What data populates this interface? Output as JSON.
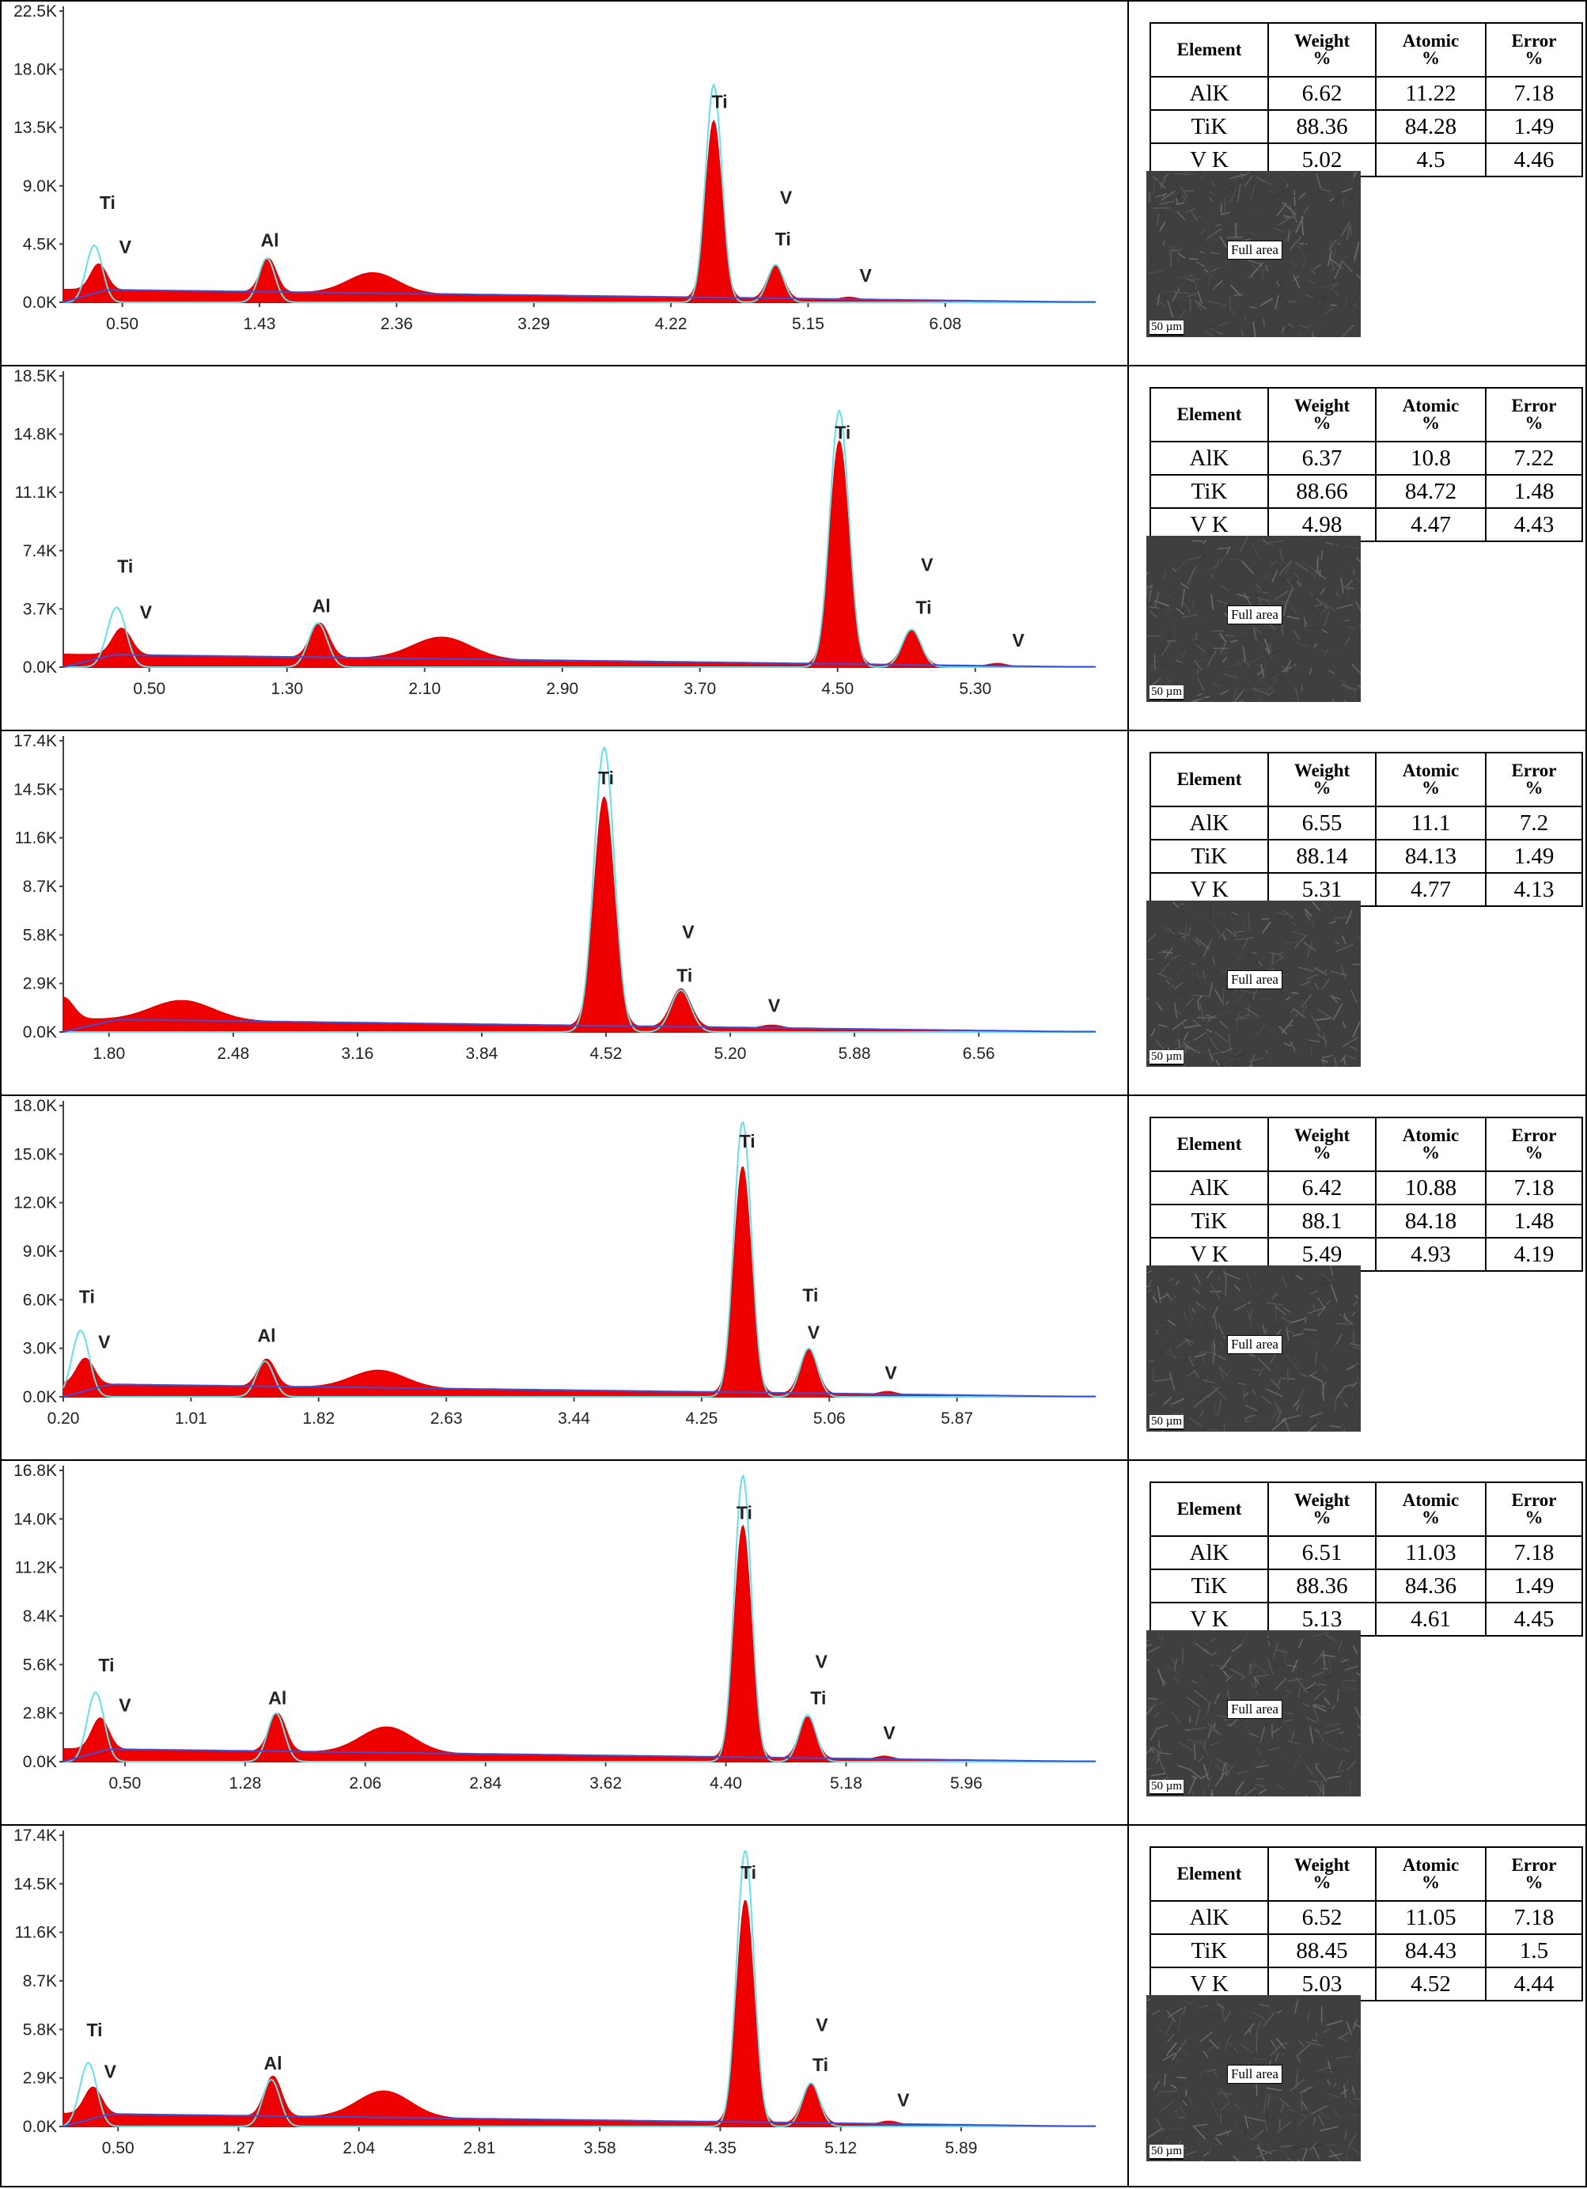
{
  "table_headers": [
    [
      "Element"
    ],
    [
      "Weight",
      "%"
    ],
    [
      "Atomic",
      "%"
    ],
    [
      "Error",
      "%"
    ]
  ],
  "image_label": "Full area",
  "scale_label": "50 µm",
  "chart_data": [
    {
      "type": "area",
      "x_ticks": [
        "0.50",
        "1.43",
        "2.36",
        "3.29",
        "4.22",
        "5.15",
        "6.08"
      ],
      "xlim": [
        0.1,
        7.1
      ],
      "y_ticks": [
        "0.0K",
        "4.5K",
        "9.0K",
        "13.5K",
        "18.0K",
        "22.5K"
      ],
      "ylim": [
        0,
        22500
      ],
      "measured_peaks": [
        {
          "x": 0.34,
          "y": 2000
        },
        {
          "x": 1.49,
          "y": 2600
        },
        {
          "x": 2.2,
          "y": 1600
        },
        {
          "x": 4.51,
          "y": 13700
        },
        {
          "x": 4.93,
          "y": 2600
        },
        {
          "x": 5.43,
          "y": 200
        }
      ],
      "fit_peaks": [
        {
          "x": 0.31,
          "y": 4400
        },
        {
          "x": 1.48,
          "y": 3400
        },
        {
          "x": 4.51,
          "y": 16800
        },
        {
          "x": 4.93,
          "y": 2900
        }
      ],
      "peak_labels": [
        {
          "text": "Ti",
          "x": 0.4,
          "y": 7200
        },
        {
          "text": "V",
          "x": 0.52,
          "y": 3800
        },
        {
          "text": "Al",
          "x": 1.5,
          "y": 4300
        },
        {
          "text": "Ti",
          "x": 4.55,
          "y": 15000
        },
        {
          "text": "V",
          "x": 5.0,
          "y": 7600
        },
        {
          "text": "Ti",
          "x": 4.98,
          "y": 4400
        },
        {
          "text": "V",
          "x": 5.54,
          "y": 1600
        }
      ],
      "table": [
        [
          "AlK",
          "6.62",
          "11.22",
          "7.18"
        ],
        [
          "TiK",
          "88.36",
          "84.28",
          "1.49"
        ],
        [
          "V K",
          "5.02",
          "4.5",
          "4.46"
        ]
      ]
    },
    {
      "type": "area",
      "x_ticks": [
        "0.50",
        "1.30",
        "2.10",
        "2.90",
        "3.70",
        "4.50",
        "5.30"
      ],
      "xlim": [
        0.0,
        6.0
      ],
      "y_ticks": [
        "0.0K",
        "3.7K",
        "7.4K",
        "11.1K",
        "14.8K",
        "18.5K"
      ],
      "ylim": [
        0,
        18500
      ],
      "measured_peaks": [
        {
          "x": 0.34,
          "y": 1700
        },
        {
          "x": 1.49,
          "y": 2200
        },
        {
          "x": 2.2,
          "y": 1400
        },
        {
          "x": 4.51,
          "y": 14200
        },
        {
          "x": 4.93,
          "y": 2200
        },
        {
          "x": 5.43,
          "y": 200
        }
      ],
      "fit_peaks": [
        {
          "x": 0.31,
          "y": 3800
        },
        {
          "x": 1.48,
          "y": 2800
        },
        {
          "x": 4.51,
          "y": 16300
        },
        {
          "x": 4.93,
          "y": 2400
        }
      ],
      "peak_labels": [
        {
          "text": "Ti",
          "x": 0.36,
          "y": 6000
        },
        {
          "text": "V",
          "x": 0.48,
          "y": 3100
        },
        {
          "text": "Al",
          "x": 1.5,
          "y": 3500
        },
        {
          "text": "Ti",
          "x": 4.53,
          "y": 14500
        },
        {
          "text": "V",
          "x": 5.02,
          "y": 6100
        },
        {
          "text": "Ti",
          "x": 5.0,
          "y": 3400
        },
        {
          "text": "V",
          "x": 5.55,
          "y": 1300
        }
      ],
      "table": [
        [
          "AlK",
          "6.37",
          "10.8",
          "7.22"
        ],
        [
          "TiK",
          "88.66",
          "84.72",
          "1.48"
        ],
        [
          "V K",
          "4.98",
          "4.47",
          "4.43"
        ]
      ]
    },
    {
      "type": "area",
      "x_ticks": [
        "1.80",
        "2.48",
        "3.16",
        "3.84",
        "4.52",
        "5.20",
        "5.88",
        "6.56"
      ],
      "xlim": [
        1.55,
        7.2
      ],
      "y_ticks": [
        "0.0K",
        "2.9K",
        "5.8K",
        "8.7K",
        "11.6K",
        "14.5K",
        "17.4K"
      ],
      "ylim": [
        0,
        17400
      ],
      "measured_peaks": [
        {
          "x": 1.55,
          "y": 1300
        },
        {
          "x": 2.2,
          "y": 1200
        },
        {
          "x": 4.51,
          "y": 13700
        },
        {
          "x": 4.93,
          "y": 2300
        },
        {
          "x": 5.43,
          "y": 200
        }
      ],
      "fit_peaks": [
        {
          "x": 4.51,
          "y": 17000
        },
        {
          "x": 4.93,
          "y": 2500
        }
      ],
      "peak_labels": [
        {
          "text": "Ti",
          "x": 4.52,
          "y": 14800
        },
        {
          "text": "V",
          "x": 4.97,
          "y": 5600
        },
        {
          "text": "Ti",
          "x": 4.95,
          "y": 3000
        },
        {
          "text": "V",
          "x": 5.44,
          "y": 1200
        }
      ],
      "table": [
        [
          "AlK",
          "6.55",
          "11.1",
          "7.2"
        ],
        [
          "TiK",
          "88.14",
          "84.13",
          "1.49"
        ],
        [
          "V K",
          "5.31",
          "4.77",
          "4.13"
        ]
      ]
    },
    {
      "type": "area",
      "x_ticks": [
        "0.20",
        "1.01",
        "1.82",
        "2.63",
        "3.44",
        "4.25",
        "5.06",
        "5.87"
      ],
      "xlim": [
        0.2,
        6.75
      ],
      "y_ticks": [
        "0.0K",
        "3.0K",
        "6.0K",
        "9.0K",
        "12.0K",
        "15.0K",
        "18.0K"
      ],
      "ylim": [
        0,
        18000
      ],
      "measured_peaks": [
        {
          "x": 0.34,
          "y": 1600
        },
        {
          "x": 1.49,
          "y": 1700
        },
        {
          "x": 2.2,
          "y": 1100
        },
        {
          "x": 4.51,
          "y": 14000
        },
        {
          "x": 4.93,
          "y": 2800
        },
        {
          "x": 5.43,
          "y": 200
        }
      ],
      "fit_peaks": [
        {
          "x": 0.31,
          "y": 4100
        },
        {
          "x": 1.48,
          "y": 2200
        },
        {
          "x": 4.51,
          "y": 17000
        },
        {
          "x": 4.93,
          "y": 3000
        }
      ],
      "peak_labels": [
        {
          "text": "Ti",
          "x": 0.35,
          "y": 5800
        },
        {
          "text": "V",
          "x": 0.46,
          "y": 3000
        },
        {
          "text": "Al",
          "x": 1.49,
          "y": 3400
        },
        {
          "text": "Ti",
          "x": 4.54,
          "y": 15400
        },
        {
          "text": "Ti",
          "x": 4.94,
          "y": 5900
        },
        {
          "text": "V",
          "x": 4.96,
          "y": 3600
        },
        {
          "text": "V",
          "x": 5.45,
          "y": 1100
        }
      ],
      "table": [
        [
          "AlK",
          "6.42",
          "10.88",
          "7.18"
        ],
        [
          "TiK",
          "88.1",
          "84.18",
          "1.48"
        ],
        [
          "V K",
          "5.49",
          "4.93",
          "4.19"
        ]
      ]
    },
    {
      "type": "area",
      "x_ticks": [
        "0.50",
        "1.28",
        "2.06",
        "2.84",
        "3.62",
        "4.40",
        "5.18",
        "5.96"
      ],
      "xlim": [
        0.1,
        6.8
      ],
      "y_ticks": [
        "0.0K",
        "2.8K",
        "5.6K",
        "8.4K",
        "11.2K",
        "14.0K",
        "16.8K"
      ],
      "ylim": [
        0,
        16800
      ],
      "measured_peaks": [
        {
          "x": 0.34,
          "y": 1800
        },
        {
          "x": 1.49,
          "y": 2200
        },
        {
          "x": 2.2,
          "y": 1500
        },
        {
          "x": 4.51,
          "y": 13400
        },
        {
          "x": 4.93,
          "y": 2400
        },
        {
          "x": 5.43,
          "y": 200
        }
      ],
      "fit_peaks": [
        {
          "x": 0.31,
          "y": 4000
        },
        {
          "x": 1.48,
          "y": 2800
        },
        {
          "x": 4.51,
          "y": 16500
        },
        {
          "x": 4.93,
          "y": 2700
        }
      ],
      "peak_labels": [
        {
          "text": "Ti",
          "x": 0.38,
          "y": 5200
        },
        {
          "text": "V",
          "x": 0.5,
          "y": 2900
        },
        {
          "text": "Al",
          "x": 1.49,
          "y": 3300
        },
        {
          "text": "Ti",
          "x": 4.52,
          "y": 14000
        },
        {
          "text": "V",
          "x": 5.02,
          "y": 5400
        },
        {
          "text": "Ti",
          "x": 5.0,
          "y": 3300
        },
        {
          "text": "V",
          "x": 5.46,
          "y": 1300
        }
      ],
      "table": [
        [
          "AlK",
          "6.51",
          "11.03",
          "7.18"
        ],
        [
          "TiK",
          "88.36",
          "84.36",
          "1.49"
        ],
        [
          "V K",
          "5.13",
          "4.61",
          "4.45"
        ]
      ]
    },
    {
      "type": "area",
      "x_ticks": [
        "0.50",
        "1.27",
        "2.04",
        "2.81",
        "3.58",
        "4.35",
        "5.12",
        "5.89"
      ],
      "xlim": [
        0.15,
        6.75
      ],
      "y_ticks": [
        "0.0K",
        "2.9K",
        "5.8K",
        "8.7K",
        "11.6K",
        "14.5K",
        "17.4K"
      ],
      "ylim": [
        0,
        17400
      ],
      "measured_peaks": [
        {
          "x": 0.34,
          "y": 1600
        },
        {
          "x": 1.49,
          "y": 2400
        },
        {
          "x": 2.2,
          "y": 1600
        },
        {
          "x": 4.51,
          "y": 13300
        },
        {
          "x": 4.93,
          "y": 2400
        },
        {
          "x": 5.43,
          "y": 200
        }
      ],
      "fit_peaks": [
        {
          "x": 0.31,
          "y": 3800
        },
        {
          "x": 1.48,
          "y": 2800
        },
        {
          "x": 4.51,
          "y": 16500
        },
        {
          "x": 4.93,
          "y": 2600
        }
      ],
      "peak_labels": [
        {
          "text": "Ti",
          "x": 0.35,
          "y": 5400
        },
        {
          "text": "V",
          "x": 0.45,
          "y": 2900
        },
        {
          "text": "Al",
          "x": 1.49,
          "y": 3400
        },
        {
          "text": "Ti",
          "x": 4.53,
          "y": 14800
        },
        {
          "text": "V",
          "x": 5.0,
          "y": 5700
        },
        {
          "text": "Ti",
          "x": 4.99,
          "y": 3300
        },
        {
          "text": "V",
          "x": 5.52,
          "y": 1200
        }
      ],
      "table": [
        [
          "AlK",
          "6.52",
          "11.05",
          "7.18"
        ],
        [
          "TiK",
          "88.45",
          "84.43",
          "1.5"
        ],
        [
          "V K",
          "5.03",
          "4.52",
          "4.44"
        ]
      ]
    }
  ]
}
